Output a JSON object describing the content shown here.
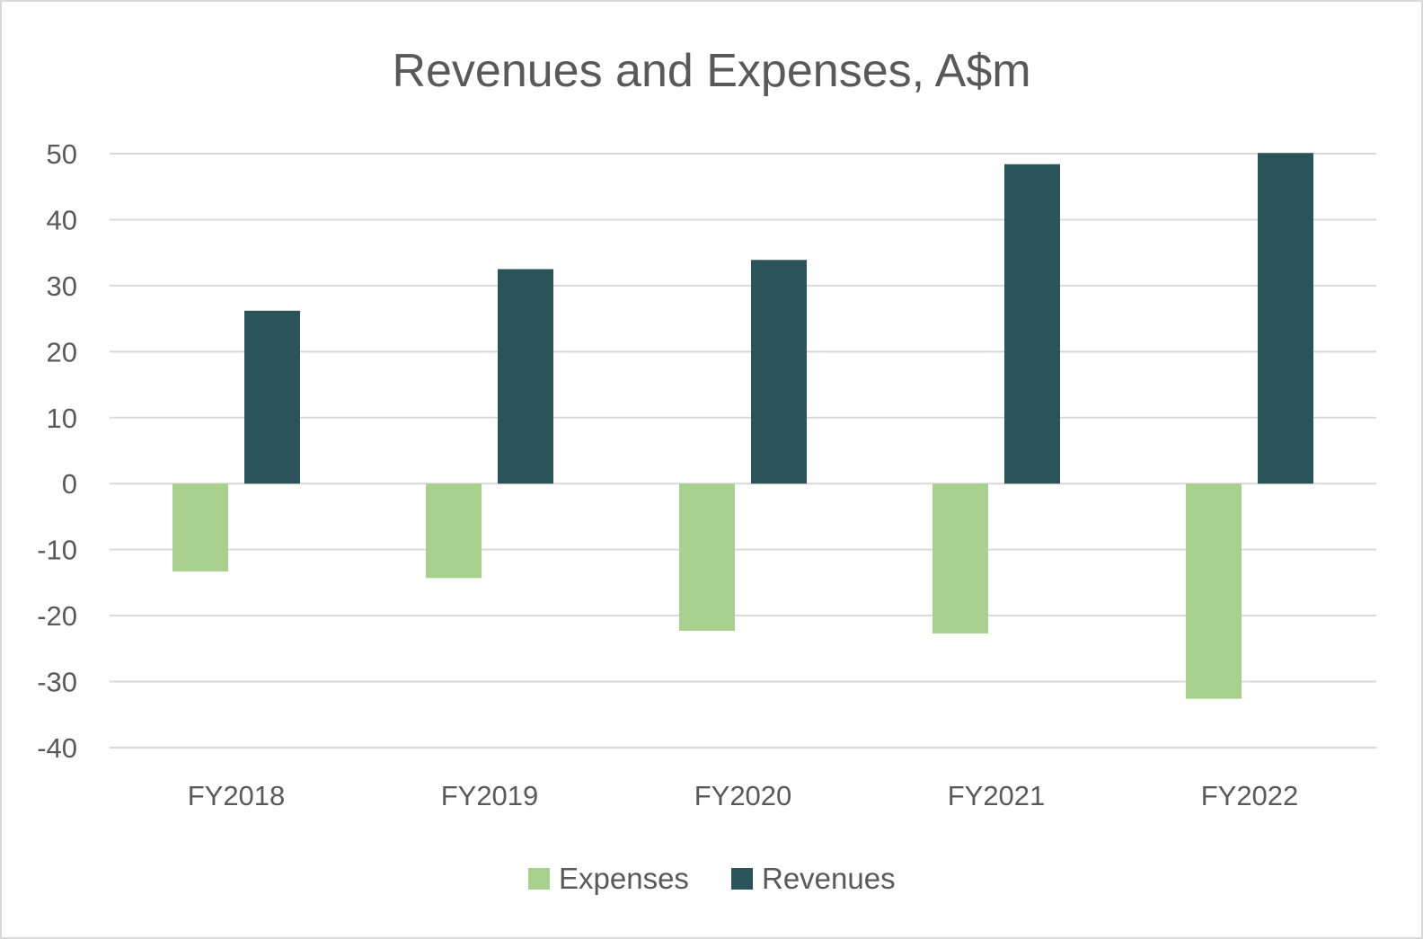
{
  "chart_data": {
    "type": "bar",
    "title": "Revenues and Expenses, A$m",
    "xlabel": "",
    "ylabel": "",
    "categories": [
      "FY2018",
      "FY2019",
      "FY2020",
      "FY2021",
      "FY2022"
    ],
    "series": [
      {
        "name": "Expenses",
        "color": "#a9d18e",
        "values": [
          -13.3,
          -14.3,
          -22.3,
          -22.7,
          -32.6
        ]
      },
      {
        "name": "Revenues",
        "color": "#2a5459",
        "values": [
          26.2,
          32.5,
          33.9,
          48.4,
          50.1
        ]
      }
    ],
    "ylim": [
      -40,
      50
    ],
    "yticks": [
      50,
      40,
      30,
      20,
      10,
      0,
      -10,
      -20,
      -30,
      -40
    ],
    "ytick_labels": [
      "50",
      "40",
      "30",
      "20",
      "10",
      "0",
      "-10",
      "-20",
      "-30",
      "-40"
    ],
    "grid": true,
    "legend_position": "bottom"
  }
}
